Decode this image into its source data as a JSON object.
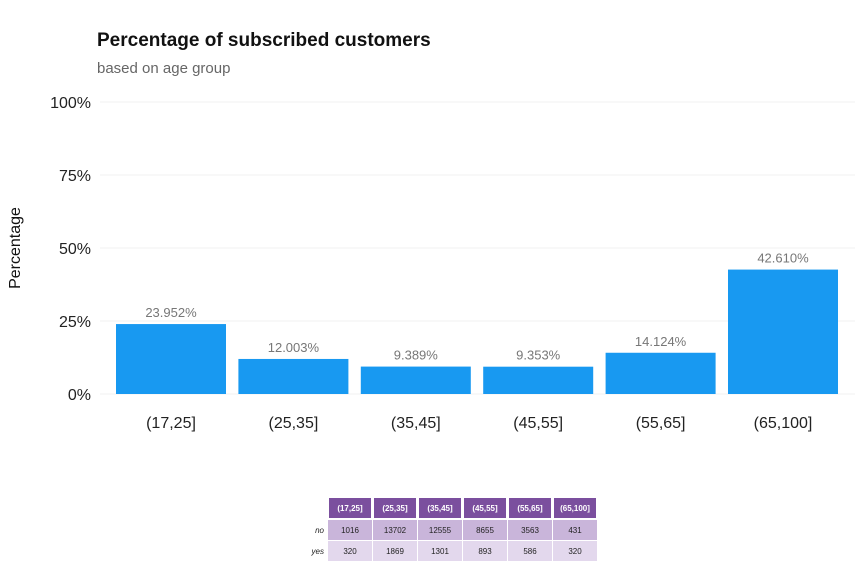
{
  "chart_data": {
    "type": "bar",
    "title": "Percentage of subscribed customers",
    "subtitle": "based on age group",
    "xlabel": "",
    "ylabel": "Percentage",
    "categories": [
      "(17,25]",
      "(25,35]",
      "(35,45]",
      "(45,55]",
      "(55,65]",
      "(65,100]"
    ],
    "values": [
      23.952,
      12.003,
      9.389,
      9.353,
      14.124,
      42.61
    ],
    "value_labels": [
      "23.952%",
      "12.003%",
      "9.389%",
      "9.353%",
      "14.124%",
      "42.610%"
    ],
    "ylim": [
      0,
      100
    ],
    "yticks": [
      0,
      25,
      50,
      75,
      100
    ],
    "ytick_labels": [
      "0%",
      "25%",
      "50%",
      "75%",
      "100%"
    ],
    "bar_color": "#1899f1",
    "grid": true,
    "legend": "none"
  },
  "table": {
    "headers": [
      "(17,25]",
      "(25,35]",
      "(35,45]",
      "(45,55]",
      "(55,65]",
      "(65,100]"
    ],
    "rows": [
      {
        "label": "no",
        "values": [
          "1016",
          "13702",
          "12555",
          "8655",
          "3563",
          "431"
        ]
      },
      {
        "label": "yes",
        "values": [
          "320",
          "1869",
          "1301",
          "893",
          "586",
          "320"
        ]
      }
    ],
    "header_color": "#7b4f9e"
  }
}
